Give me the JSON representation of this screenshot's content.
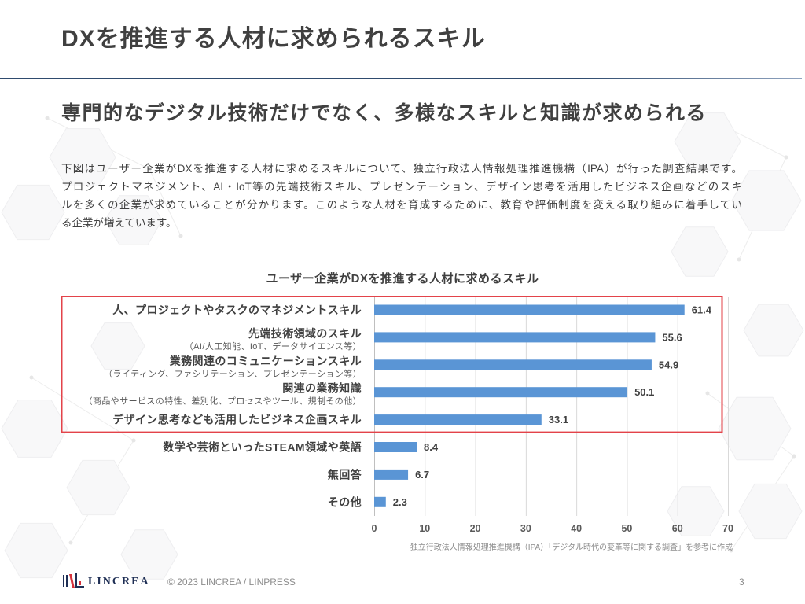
{
  "slide": {
    "title": "DXを推進する人材に求められるスキル",
    "subtitle": "専門的なデジタル技術だけでなく、多様なスキルと知識が求められる",
    "intro_lines": [
      "下図はユーザー企業がDXを推進する人材に求めるスキルについて、独立行政法人情報処理推進機構（IPA）が行った調査結果です。",
      "プロジェクトマネジメント、AI・IoT等の先端技術スキル、プレゼンテーション、デザイン思考を活用したビジネス企画などのスキ",
      "ルを多くの企業が求めていることが分かります。このような人材を育成するために、教育や評価制度を変える取り組みに着手してい",
      "る企業が増えています。"
    ]
  },
  "chart_data": {
    "type": "bar",
    "orientation": "horizontal",
    "title": "ユーザー企業がDXを推進する人材に求めるスキル",
    "categories": [
      "人、プロジェクトやタスクのマネジメントスキル",
      "先端技術領域のスキル",
      "業務関連のコミュニケーションスキル",
      "関連の業務知識",
      "デザイン思考なども活用したビジネス企画スキル",
      "数学や芸術といったSTEAM領域や英語",
      "無回答",
      "その他"
    ],
    "category_notes": [
      "",
      "（AI/人工知能、IoT、データサイエンス等）",
      "（ライティング、ファシリテーション、プレゼンテーション等）",
      "（商品やサービスの特性、差別化、プロセスやツール、規制その他）",
      "",
      "",
      "",
      ""
    ],
    "values": [
      61.4,
      55.6,
      54.9,
      50.1,
      33.1,
      8.4,
      6.7,
      2.3
    ],
    "xlim": [
      0,
      70
    ],
    "xticks": [
      0,
      10,
      20,
      30,
      40,
      50,
      60,
      70
    ],
    "grid": "vertical",
    "data_labels": true,
    "highlighted": [
      true,
      true,
      true,
      true,
      true,
      false,
      false,
      false
    ],
    "source": "独立行政法人情報処理推進機構（IPA）「デジタル時代の変革等に関する調査」を参考に作成"
  },
  "footer": {
    "logo_icon": "lincrea-logo-icon",
    "logo_text": "LINCREA",
    "copyright": "© 2023 LINCREA / LINPRESS",
    "page_number": "3"
  },
  "colors": {
    "text": "#404040",
    "divider": "#2f4b6e",
    "bar": "#5a95d5",
    "highlight": "#e3434a",
    "grid": "#d9d9d9",
    "muted": "#8c8c8c",
    "logo_navy": "#1f2f55",
    "logo_red": "#d6313c"
  }
}
